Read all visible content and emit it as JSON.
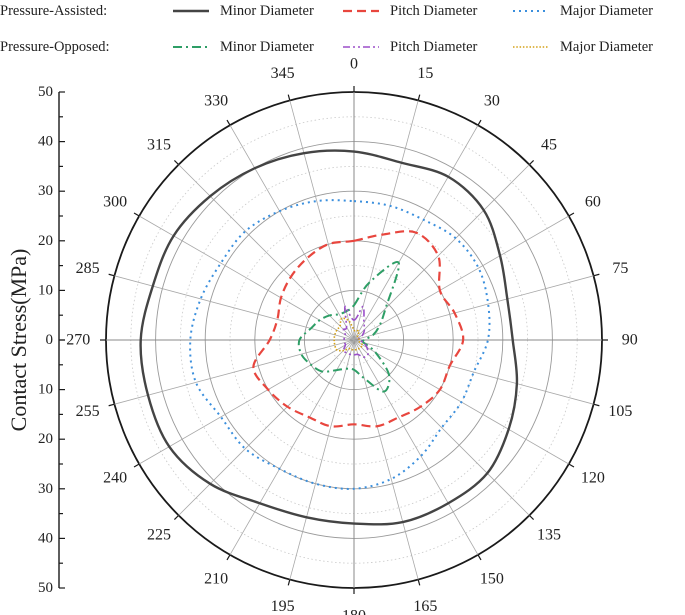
{
  "chart_data": {
    "type": "polar-line",
    "ylabel": "Contact Stress(MPa)",
    "radial_range": [
      0,
      50
    ],
    "radial_ticks": [
      0,
      10,
      20,
      30,
      40,
      50
    ],
    "angle_ticks": [
      0,
      15,
      30,
      45,
      60,
      75,
      90,
      105,
      120,
      135,
      150,
      165,
      180,
      195,
      210,
      225,
      240,
      255,
      270,
      285,
      300,
      315,
      330,
      345
    ],
    "grid": true,
    "legend": {
      "placement": "top",
      "groups": [
        {
          "label": "Pressure-Assisted:",
          "series": [
            0,
            1,
            2
          ]
        },
        {
          "label": "Pressure-Opposed:",
          "series": [
            3,
            4,
            5
          ]
        }
      ]
    },
    "theta": [
      0,
      15,
      30,
      45,
      60,
      75,
      90,
      105,
      120,
      135,
      150,
      165,
      180,
      195,
      210,
      225,
      240,
      255,
      270,
      285,
      300,
      315,
      330,
      345
    ],
    "series": [
      {
        "name": "Minor Diameter",
        "color": "#444444",
        "dash": "solid",
        "r": [
          38,
          37,
          38,
          37,
          34,
          32,
          32,
          34,
          36,
          38,
          38,
          38,
          37,
          37,
          38,
          41,
          43,
          43,
          43,
          42,
          42,
          41,
          40,
          39
        ]
      },
      {
        "name": "Pitch Diameter",
        "color": "#e8463e",
        "dash": "dash",
        "r": [
          20,
          22,
          25,
          24,
          20,
          21,
          22,
          20,
          20,
          19,
          18,
          18,
          17,
          18,
          18,
          19,
          20,
          21,
          17,
          16,
          17,
          18,
          19,
          20
        ]
      },
      {
        "name": "Major Diameter",
        "color": "#3b8fdd",
        "dash": "dot",
        "r": [
          28,
          28,
          28,
          29,
          29,
          28,
          27,
          25,
          25,
          25,
          27,
          29,
          30,
          30,
          30,
          31,
          31,
          33,
          33,
          32,
          31,
          31,
          30,
          29
        ]
      },
      {
        "name": "Minor Diameter",
        "color": "#2e9e66",
        "dash": "dashdot",
        "r": [
          7,
          12,
          18,
          9,
          6,
          4,
          2,
          2,
          5,
          10,
          12,
          8,
          6,
          6,
          7,
          9,
          10,
          11,
          11,
          9,
          8,
          7,
          6,
          6
        ]
      },
      {
        "name": "Pitch Diameter",
        "color": "#9b4fc9",
        "dash": "dashdotdot",
        "r": [
          4,
          7,
          4,
          3,
          2,
          1,
          1,
          2,
          3,
          4,
          4,
          3,
          3,
          3,
          3,
          3,
          2,
          2,
          2,
          2,
          2,
          3,
          3,
          7
        ]
      },
      {
        "name": "Major Diameter",
        "color": "#d4a017",
        "dash": "densedot",
        "r": [
          2,
          2,
          2,
          1,
          1,
          1,
          1,
          1,
          2,
          2,
          2,
          2,
          2,
          2,
          2,
          3,
          4,
          4,
          4,
          4,
          4,
          4,
          5,
          4
        ]
      }
    ]
  }
}
